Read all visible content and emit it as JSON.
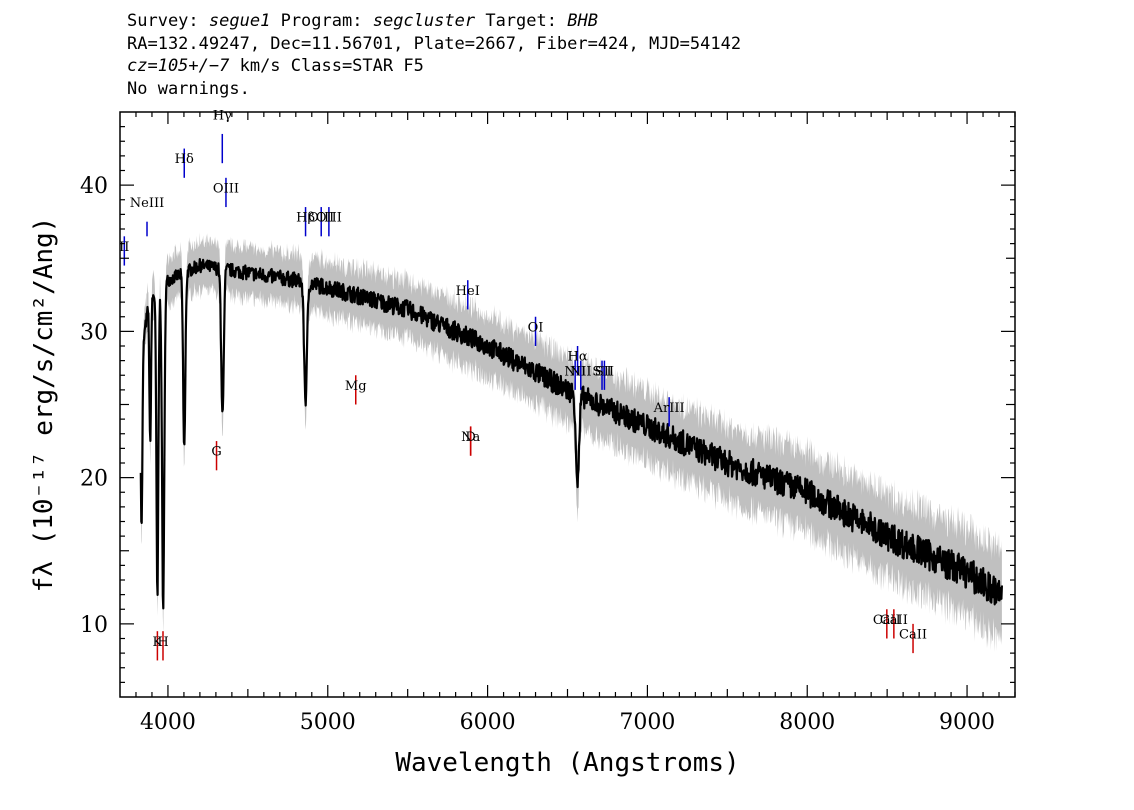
{
  "header": {
    "survey_label": "Survey:",
    "survey": "segue1",
    "program_label": "Program:",
    "program": "segcluster",
    "target_label": "Target:",
    "target": "BHB",
    "line2": "RA=132.49247, Dec=11.56701, Plate=2667, Fiber=424, MJD=54142",
    "cz_label": "cz=105+/−7",
    "line3_rest": " km/s Class=STAR F5",
    "line4": "No warnings."
  },
  "chart_data": {
    "type": "line",
    "xlabel": "Wavelength (Angstroms)",
    "ylabel": "fλ (10⁻¹⁷ erg/s/cm²/Ang)",
    "xlim": [
      3700,
      9300
    ],
    "ylim": [
      5,
      45
    ],
    "x_ticks": [
      4000,
      5000,
      6000,
      7000,
      8000,
      9000
    ],
    "y_ticks": [
      10,
      20,
      30,
      40
    ],
    "grid": false,
    "series": [
      {
        "color": "#000000",
        "continuum": [
          [
            3830,
            28
          ],
          [
            3880,
            32
          ],
          [
            4000,
            33.5
          ],
          [
            4200,
            34.5
          ],
          [
            4500,
            34
          ],
          [
            4800,
            33.5
          ],
          [
            5000,
            33
          ],
          [
            5500,
            31.5
          ],
          [
            6000,
            29
          ],
          [
            6500,
            26
          ],
          [
            7000,
            23.5
          ],
          [
            7500,
            21
          ],
          [
            8000,
            19
          ],
          [
            8500,
            16
          ],
          [
            9000,
            13.5
          ],
          [
            9200,
            12
          ]
        ],
        "absorption_lines": [
          {
            "x": 3835,
            "depth": 12,
            "width": 5
          },
          {
            "x": 3889,
            "depth": 10,
            "width": 5
          },
          {
            "x": 3934,
            "depth": 21,
            "width": 6
          },
          {
            "x": 3970,
            "depth": 22,
            "width": 7
          },
          {
            "x": 4102,
            "depth": 12,
            "width": 7
          },
          {
            "x": 4341,
            "depth": 10,
            "width": 8
          },
          {
            "x": 4861,
            "depth": 8,
            "width": 9
          },
          {
            "x": 6563,
            "depth": 6,
            "width": 10
          }
        ]
      },
      {
        "color": "#c0c0c0",
        "role": "error band"
      }
    ],
    "annotations": [
      {
        "label": "NeIII",
        "wave": 3869,
        "tick_y": [
          36.5,
          37.5
        ],
        "label_y": 38.5,
        "color": "#0000cc"
      },
      {
        "label": "Hδ",
        "wave": 4102,
        "tick_y": [
          42.5,
          40.5
        ],
        "label_y": 41.5,
        "color": "#0000cc"
      },
      {
        "label": "Hγ",
        "wave": 4340,
        "tick_y": [
          43.5,
          41.5
        ],
        "label_y": 44.5,
        "color": "#0000cc"
      },
      {
        "label": "OIII",
        "wave": 4363,
        "tick_y": [
          40.5,
          38.5
        ],
        "label_y": 39.5,
        "color": "#0000cc"
      },
      {
        "label": "Hβ",
        "wave": 4861,
        "tick_y": [
          38.5,
          36.5
        ],
        "label_y": 37.5,
        "color": "#0000cc"
      },
      {
        "label": "OIII",
        "wave": 4959,
        "tick_y": [
          38.5,
          36.5
        ],
        "label_y": 37.5,
        "color": "#0000cc"
      },
      {
        "label": "OIII",
        "wave": 5007,
        "tick_y": [
          38.5,
          36.5
        ],
        "label_y": 37.5,
        "color": "#0000cc"
      },
      {
        "label": "HeI",
        "wave": 5876,
        "tick_y": [
          33.5,
          31.5
        ],
        "label_y": 32.5,
        "color": "#0000cc"
      },
      {
        "label": "OI",
        "wave": 6300,
        "tick_y": [
          31.0,
          29.0
        ],
        "label_y": 30.0,
        "color": "#0000cc"
      },
      {
        "label": "NII",
        "wave": 6548,
        "tick_y": [
          28.0,
          26.0
        ],
        "label_y": 27.0,
        "color": "#0000cc"
      },
      {
        "label": "Hα",
        "wave": 6563,
        "tick_y": [
          29.0,
          27.0
        ],
        "label_y": 28.0,
        "color": "#0000cc"
      },
      {
        "label": "NII",
        "wave": 6583,
        "tick_y": [
          28.0,
          26.0
        ],
        "label_y": 27.0,
        "color": "#0000cc"
      },
      {
        "label": "SII",
        "wave": 6716,
        "tick_y": [
          28.0,
          26.0
        ],
        "label_y": 27.0,
        "color": "#0000cc"
      },
      {
        "label": "SII",
        "wave": 6731,
        "tick_y": [
          28.0,
          26.0
        ],
        "label_y": 27.0,
        "color": "#0000cc"
      },
      {
        "label": "ArIII",
        "wave": 7136,
        "tick_y": [
          25.5,
          23.5
        ],
        "label_y": 24.5,
        "color": "#0000cc"
      },
      {
        "label": "II",
        "wave": 3727,
        "tick_y": [
          36.5,
          34.5
        ],
        "label_y": 35.5,
        "color": "#0000cc"
      },
      {
        "label": "K",
        "wave": 3934,
        "tick_y": [
          7.5,
          9.5
        ],
        "label_y": 8.5,
        "color": "#cc0000"
      },
      {
        "label": "H",
        "wave": 3969,
        "tick_y": [
          7.5,
          9.5
        ],
        "label_y": 8.5,
        "color": "#cc0000"
      },
      {
        "label": "G",
        "wave": 4304,
        "tick_y": [
          20.5,
          22.5
        ],
        "label_y": 21.5,
        "color": "#cc0000"
      },
      {
        "label": "Mg",
        "wave": 5175,
        "tick_y": [
          25.0,
          27.0
        ],
        "label_y": 26.0,
        "color": "#cc0000"
      },
      {
        "label": "Na",
        "wave": 5894,
        "tick_y": [
          21.5,
          23.5
        ],
        "label_y": 22.5,
        "color": "#cc0000"
      },
      {
        "label": "D",
        "wave": 5894,
        "tick_y": [
          21.5,
          23.5
        ],
        "label_y": 22.5,
        "color": "#cc0000"
      },
      {
        "label": "CaII",
        "wave": 8498,
        "tick_y": [
          9.0,
          11.0
        ],
        "label_y": 10.0,
        "color": "#cc0000"
      },
      {
        "label": "CaII",
        "wave": 8542,
        "tick_y": [
          9.0,
          11.0
        ],
        "label_y": 10.0,
        "color": "#cc0000"
      },
      {
        "label": "CaII",
        "wave": 8662,
        "tick_y": [
          8.0,
          10.0
        ],
        "label_y": 9.0,
        "color": "#cc0000"
      }
    ]
  }
}
